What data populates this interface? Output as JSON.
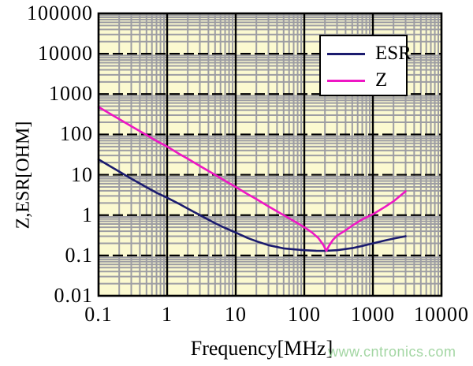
{
  "watermark": {
    "text": "www.cntronics.com",
    "color": "#a3d6a3"
  },
  "colors": {
    "plot_bg": "#fbf9d0",
    "minor_grid": "#9d9da3",
    "major_grid": "#000000",
    "border": "#000000",
    "esr_line": "#1b1b6e",
    "z_line": "#ee16c4"
  },
  "chart_data": {
    "type": "line",
    "title": "",
    "x_axis": {
      "label": "Frequency[MHz]",
      "scale": "log",
      "min": 0.1,
      "max": 10000,
      "ticks": [
        {
          "value": 0.1,
          "label": "0.1"
        },
        {
          "value": 1,
          "label": "1"
        },
        {
          "value": 10,
          "label": "10"
        },
        {
          "value": 100,
          "label": "100"
        },
        {
          "value": 1000,
          "label": "1000"
        },
        {
          "value": 10000,
          "label": "10000"
        }
      ]
    },
    "y_axis": {
      "label": "Z,ESR[OHM]",
      "scale": "log",
      "min": 0.01,
      "max": 100000,
      "ticks": [
        {
          "value": 100000,
          "label": "100000"
        },
        {
          "value": 10000,
          "label": "10000"
        },
        {
          "value": 1000,
          "label": "1000"
        },
        {
          "value": 100,
          "label": "100"
        },
        {
          "value": 10,
          "label": "10"
        },
        {
          "value": 1,
          "label": "1"
        },
        {
          "value": 0.1,
          "label": "0.1"
        },
        {
          "value": 0.01,
          "label": "0.01"
        }
      ]
    },
    "legend": {
      "position": "top-right-inside",
      "entries": [
        {
          "label": "ESR",
          "color": "#1b1b6e"
        },
        {
          "label": "Z",
          "color": "#ee16c4"
        }
      ]
    },
    "grid": {
      "major": true,
      "minor": true,
      "major_horizontal_style": "dashed",
      "major_vertical_style": "solid"
    },
    "series": [
      {
        "name": "ESR",
        "color": "#1b1b6e",
        "points": [
          [
            0.1,
            24
          ],
          [
            0.15,
            16
          ],
          [
            0.2,
            12
          ],
          [
            0.3,
            8
          ],
          [
            0.5,
            4.9
          ],
          [
            0.7,
            3.6
          ],
          [
            1,
            2.7
          ],
          [
            1.5,
            1.9
          ],
          [
            2,
            1.45
          ],
          [
            3,
            1.0
          ],
          [
            5,
            0.63
          ],
          [
            7,
            0.48
          ],
          [
            10,
            0.37
          ],
          [
            15,
            0.27
          ],
          [
            20,
            0.225
          ],
          [
            30,
            0.18
          ],
          [
            50,
            0.15
          ],
          [
            70,
            0.142
          ],
          [
            100,
            0.135
          ],
          [
            150,
            0.131
          ],
          [
            200,
            0.13
          ],
          [
            300,
            0.135
          ],
          [
            500,
            0.152
          ],
          [
            700,
            0.172
          ],
          [
            1000,
            0.2
          ],
          [
            1500,
            0.235
          ],
          [
            2000,
            0.262
          ],
          [
            3000,
            0.3
          ]
        ]
      },
      {
        "name": "Z",
        "color": "#ee16c4",
        "points": [
          [
            0.1,
            480
          ],
          [
            0.15,
            320
          ],
          [
            0.2,
            240
          ],
          [
            0.3,
            160
          ],
          [
            0.5,
            97
          ],
          [
            0.7,
            69
          ],
          [
            1,
            50
          ],
          [
            1.5,
            33
          ],
          [
            2,
            25
          ],
          [
            3,
            16.5
          ],
          [
            5,
            10
          ],
          [
            7,
            7.1
          ],
          [
            10,
            5
          ],
          [
            15,
            3.3
          ],
          [
            20,
            2.5
          ],
          [
            30,
            1.65
          ],
          [
            50,
            1.0
          ],
          [
            70,
            0.72
          ],
          [
            100,
            0.5
          ],
          [
            130,
            0.37
          ],
          [
            160,
            0.27
          ],
          [
            190,
            0.18
          ],
          [
            210,
            0.13
          ],
          [
            230,
            0.175
          ],
          [
            260,
            0.24
          ],
          [
            300,
            0.31
          ],
          [
            400,
            0.42
          ],
          [
            500,
            0.55
          ],
          [
            700,
            0.78
          ],
          [
            1000,
            1.05
          ],
          [
            1500,
            1.6
          ],
          [
            2000,
            2.2
          ],
          [
            3000,
            3.9
          ]
        ]
      }
    ]
  }
}
